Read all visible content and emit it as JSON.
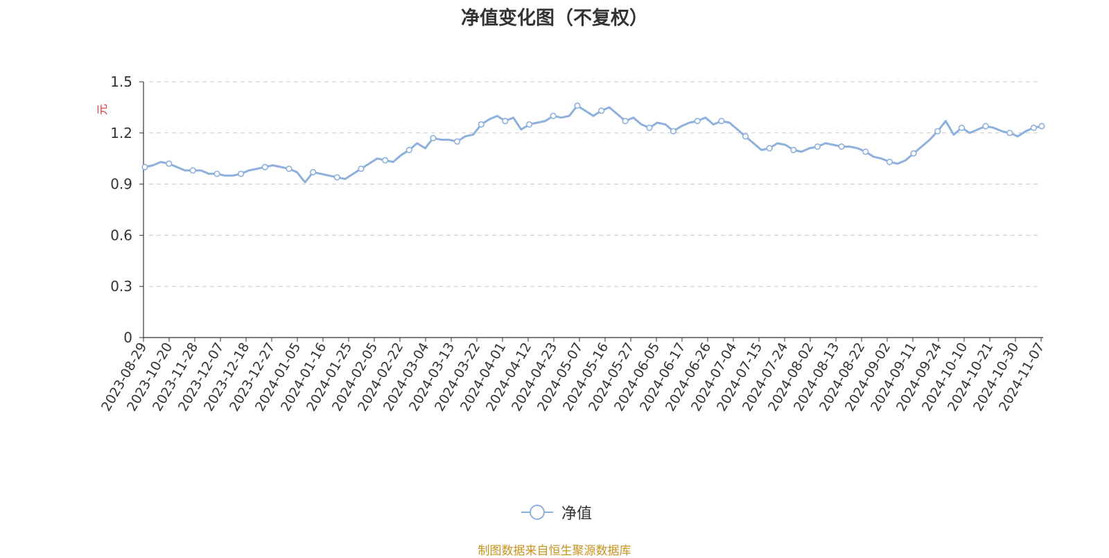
{
  "chart_data": {
    "type": "line",
    "title": "净值变化图（不复权）",
    "ylabel": "元",
    "ylim": [
      0,
      1.5
    ],
    "yticks": [
      "0",
      "0.3",
      "0.6",
      "0.9",
      "1.2",
      "1.5"
    ],
    "grid": "horizontal dashed",
    "legend_position": "bottom-center",
    "x_tick_labels": [
      "2023-08-29",
      "2023-10-20",
      "2023-11-28",
      "2023-12-07",
      "2023-12-18",
      "2023-12-27",
      "2024-01-05",
      "2024-01-16",
      "2024-01-25",
      "2024-02-05",
      "2024-02-22",
      "2024-03-04",
      "2024-03-13",
      "2024-03-22",
      "2024-04-01",
      "2024-04-12",
      "2024-04-23",
      "2024-05-07",
      "2024-05-16",
      "2024-05-27",
      "2024-06-05",
      "2024-06-17",
      "2024-06-26",
      "2024-07-04",
      "2024-07-15",
      "2024-07-24",
      "2024-08-02",
      "2024-08-13",
      "2024-08-22",
      "2024-09-02",
      "2024-09-11",
      "2024-09-24",
      "2024-10-10",
      "2024-10-21",
      "2024-10-30",
      "2024-11-07"
    ],
    "series": [
      {
        "name": "净值",
        "color": "#8eb0dc",
        "values": [
          1.0,
          1.01,
          1.03,
          1.02,
          1.0,
          0.98,
          0.98,
          0.98,
          0.96,
          0.96,
          0.95,
          0.95,
          0.96,
          0.98,
          0.99,
          1.0,
          1.01,
          1.0,
          0.99,
          0.97,
          0.91,
          0.97,
          0.96,
          0.95,
          0.94,
          0.93,
          0.96,
          0.99,
          1.02,
          1.05,
          1.04,
          1.03,
          1.07,
          1.1,
          1.14,
          1.11,
          1.17,
          1.16,
          1.16,
          1.15,
          1.18,
          1.19,
          1.25,
          1.28,
          1.3,
          1.27,
          1.29,
          1.22,
          1.25,
          1.26,
          1.27,
          1.3,
          1.29,
          1.3,
          1.36,
          1.33,
          1.3,
          1.33,
          1.35,
          1.31,
          1.27,
          1.29,
          1.25,
          1.23,
          1.26,
          1.25,
          1.21,
          1.24,
          1.26,
          1.27,
          1.29,
          1.25,
          1.27,
          1.26,
          1.22,
          1.18,
          1.14,
          1.1,
          1.11,
          1.14,
          1.13,
          1.1,
          1.09,
          1.11,
          1.12,
          1.14,
          1.13,
          1.12,
          1.12,
          1.11,
          1.09,
          1.06,
          1.05,
          1.03,
          1.02,
          1.04,
          1.08,
          1.12,
          1.16,
          1.21,
          1.27,
          1.19,
          1.23,
          1.2,
          1.22,
          1.24,
          1.23,
          1.21,
          1.2,
          1.18,
          1.21,
          1.23,
          1.24
        ]
      }
    ]
  },
  "legend": {
    "label": "净值"
  },
  "source_note": "制图数据来自恒生聚源数据库"
}
